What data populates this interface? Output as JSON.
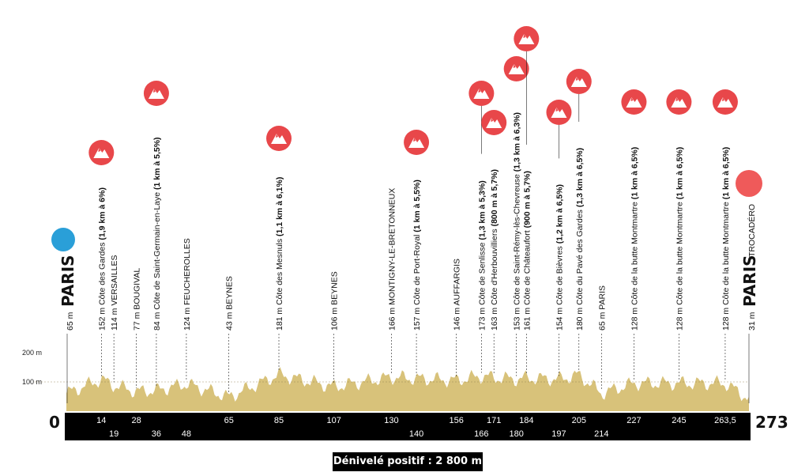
{
  "start": {
    "label": "PARIS",
    "altitude": "65 m",
    "km": "0",
    "color": "#2a9fd8"
  },
  "finish": {
    "label": "PARIS",
    "sub": "TROCADÉRO",
    "altitude": "31 m",
    "km": "273",
    "color": "#ef5a5a"
  },
  "climb_icon_color": "#e8474a",
  "profile_fill": "#d8c27a",
  "altitude_ticks": [
    "200 m",
    "100 m"
  ],
  "waypoints": [
    {
      "km": 14,
      "km_label": "14",
      "km_row": "top",
      "alt": "152 m",
      "name": "Côte des Gardes",
      "detail": "(1,9 km à 6%)",
      "climb": true
    },
    {
      "km": 19,
      "km_label": "19",
      "km_row": "bottom",
      "alt": "114 m",
      "name": "VERSAILLES",
      "detail": "",
      "climb": false
    },
    {
      "km": 28,
      "km_label": "28",
      "km_row": "top",
      "alt": "77 m",
      "name": "BOUGIVAL",
      "detail": "",
      "climb": false
    },
    {
      "km": 36,
      "km_label": "36",
      "km_row": "bottom",
      "alt": "84 m",
      "name": "Côte de Saint-Germain-en-Laye",
      "detail": "(1 km à 5,5%)",
      "climb": true
    },
    {
      "km": 48,
      "km_label": "48",
      "km_row": "bottom",
      "alt": "124 m",
      "name": "FEUCHEROLLES",
      "detail": "",
      "climb": false
    },
    {
      "km": 65,
      "km_label": "65",
      "km_row": "top",
      "alt": "43 m",
      "name": "BEYNES",
      "detail": "",
      "climb": false
    },
    {
      "km": 85,
      "km_label": "85",
      "km_row": "top",
      "alt": "181 m",
      "name": "Côte des Mesnuls",
      "detail": "(1,1 km à 6,1%)",
      "climb": true
    },
    {
      "km": 107,
      "km_label": "107",
      "km_row": "top",
      "alt": "106 m",
      "name": "BEYNES",
      "detail": "",
      "climb": false
    },
    {
      "km": 130,
      "km_label": "130",
      "km_row": "top",
      "alt": "166 m",
      "name": "MONTIGNY-LE-BRETONNEUX",
      "detail": "",
      "climb": false
    },
    {
      "km": 140,
      "km_label": "140",
      "km_row": "bottom",
      "alt": "157 m",
      "name": "Côte de Port-Royal",
      "detail": "(1 km à 5,5%)",
      "climb": true
    },
    {
      "km": 156,
      "km_label": "156",
      "km_row": "top",
      "alt": "146 m",
      "name": "AUFFARGIS",
      "detail": "",
      "climb": false
    },
    {
      "km": 166,
      "km_label": "166",
      "km_row": "bottom",
      "alt": "173 m",
      "name": "Côte de Senlisse",
      "detail": "(1,3 km à 5,3%)",
      "climb": true
    },
    {
      "km": 171,
      "km_label": "171",
      "km_row": "top",
      "alt": "163 m",
      "name": "Côte d'Herbouvilliers",
      "detail": "(800 m à 5,7%)",
      "climb": true
    },
    {
      "km": 180,
      "km_label": "180",
      "km_row": "bottom",
      "alt": "153 m",
      "name": "Côte de Saint-Rémy-lès-Chevreuse",
      "detail": "(1,3 km à 6,3%)",
      "climb": true
    },
    {
      "km": 184,
      "km_label": "184",
      "km_row": "top",
      "alt": "161 m",
      "name": "Côte de Châteaufort",
      "detail": "(900 m à 5,7%)",
      "climb": true
    },
    {
      "km": 197,
      "km_label": "197",
      "km_row": "bottom",
      "alt": "154 m",
      "name": "Côte de Bièvres",
      "detail": "(1,2 km à 6,5%)",
      "climb": true
    },
    {
      "km": 205,
      "km_label": "205",
      "km_row": "top",
      "alt": "180 m",
      "name": "Côte du Pavé des Gardes",
      "detail": "(1,3 km à 6,5%)",
      "climb": true
    },
    {
      "km": 214,
      "km_label": "214",
      "km_row": "bottom",
      "alt": "65 m",
      "name": "PARIS",
      "detail": "",
      "climb": false
    },
    {
      "km": 227,
      "km_label": "227",
      "km_row": "top",
      "alt": "128 m",
      "name": "Côte de la butte Montmartre",
      "detail": "(1 km à 6,5%)",
      "climb": true
    },
    {
      "km": 245,
      "km_label": "245",
      "km_row": "top",
      "alt": "128 m",
      "name": "Côte de la butte Montmartre",
      "detail": "(1 km à 6,5%)",
      "climb": true
    },
    {
      "km": 263.5,
      "km_label": "263,5",
      "km_row": "top",
      "alt": "128 m",
      "name": "Côte de la butte Montmartre",
      "detail": "(1 km à 6,5%)",
      "climb": true
    }
  ],
  "footer": {
    "label": "Dénivelé positif : 2 800 m"
  }
}
